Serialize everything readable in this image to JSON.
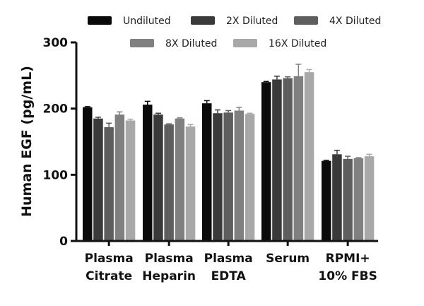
{
  "chart_data": {
    "type": "bar",
    "title": "",
    "xlabel": "",
    "ylabel": "Human EGF (pg/mL)",
    "ylim": [
      0,
      300
    ],
    "yticks": [
      0,
      100,
      200,
      300
    ],
    "grid": false,
    "legend_position": "top",
    "categories": [
      [
        "Plasma",
        "Citrate"
      ],
      [
        "Plasma",
        "Heparin"
      ],
      [
        "Plasma",
        "EDTA"
      ],
      [
        "Serum",
        ""
      ],
      [
        "RPMI+",
        "10% FBS"
      ]
    ],
    "series": [
      {
        "name": "Undiluted",
        "color": "#0a0a0a",
        "values": [
          202,
          206,
          208,
          240,
          121
        ],
        "errors": [
          1,
          5,
          4,
          1,
          1
        ]
      },
      {
        "name": "2X Diluted",
        "color": "#3a3a3a",
        "values": [
          185,
          191,
          193,
          244,
          131
        ],
        "errors": [
          2,
          2,
          5,
          5,
          6
        ]
      },
      {
        "name": "4X Diluted",
        "color": "#5e5e5e",
        "values": [
          172,
          176,
          194,
          246,
          124
        ],
        "errors": [
          6,
          1,
          3,
          2,
          4
        ]
      },
      {
        "name": "8X Diluted",
        "color": "#808080",
        "values": [
          191,
          185,
          197,
          249,
          125
        ],
        "errors": [
          4,
          1,
          5,
          18,
          1
        ]
      },
      {
        "name": "16X Diluted",
        "color": "#a8a8a8",
        "values": [
          182,
          173,
          192,
          255,
          128
        ],
        "errors": [
          2,
          3,
          1,
          4,
          3
        ]
      }
    ]
  }
}
